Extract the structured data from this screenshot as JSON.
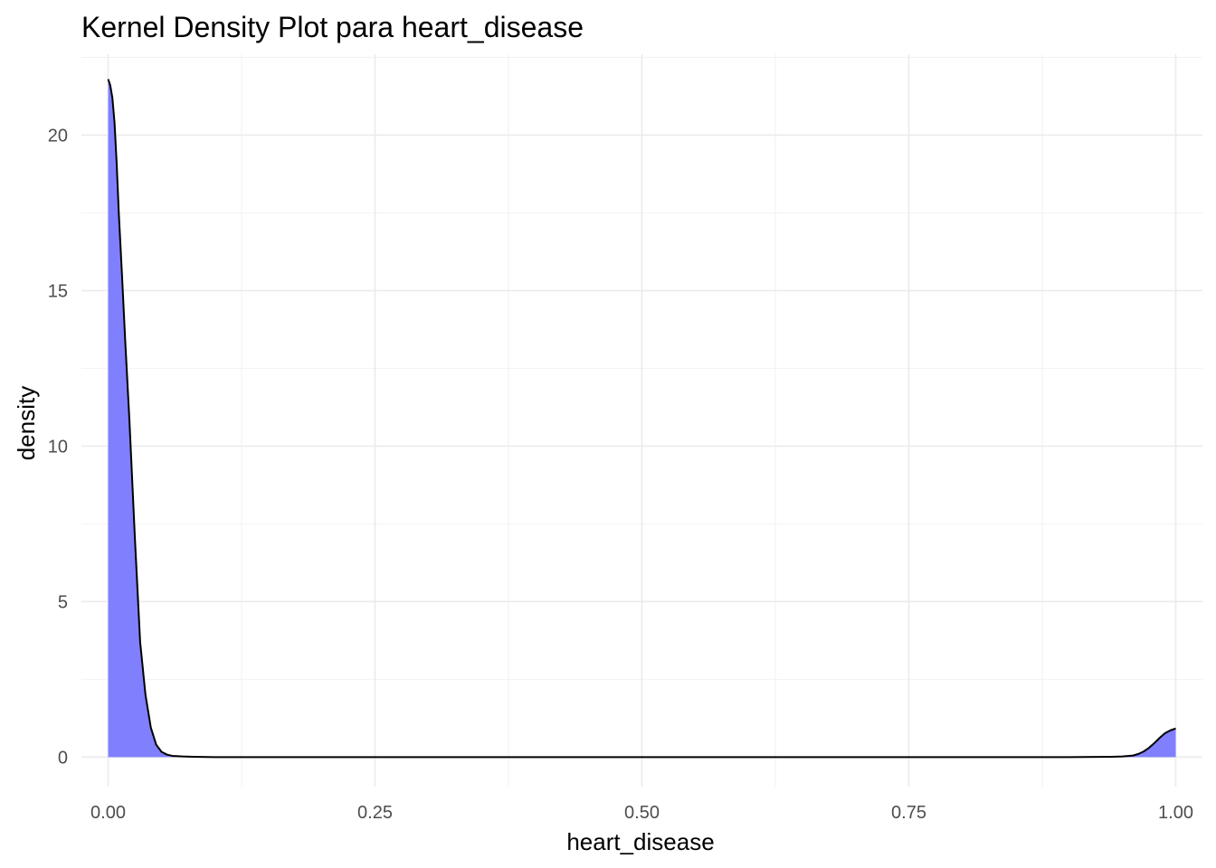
{
  "chart_data": {
    "type": "area",
    "title": "Kernel Density Plot para heart_disease",
    "xlabel": "heart_disease",
    "ylabel": "density",
    "xlim": [
      -0.025,
      1.025
    ],
    "ylim": [
      -0.95,
      22.6
    ],
    "x_ticks": [
      {
        "value": 0.0,
        "label": "0.00"
      },
      {
        "value": 0.25,
        "label": "0.25"
      },
      {
        "value": 0.5,
        "label": "0.50"
      },
      {
        "value": 0.75,
        "label": "0.75"
      },
      {
        "value": 1.0,
        "label": "1.00"
      }
    ],
    "y_ticks": [
      {
        "value": 0,
        "label": "0"
      },
      {
        "value": 5,
        "label": "5"
      },
      {
        "value": 10,
        "label": "10"
      },
      {
        "value": 15,
        "label": "15"
      },
      {
        "value": 20,
        "label": "20"
      }
    ],
    "minor_x_ticks": [
      0.125,
      0.375,
      0.625,
      0.875
    ],
    "minor_y_ticks": [
      2.5,
      7.5,
      12.5,
      17.5,
      22.5
    ],
    "grid": true,
    "legend": "none",
    "fill_color": "#8080ff",
    "line_color": "#000000",
    "series": [
      {
        "x": [
          0.0,
          0.002,
          0.004,
          0.006,
          0.008,
          0.01,
          0.013,
          0.016,
          0.02,
          0.025,
          0.03,
          0.035,
          0.04,
          0.045,
          0.05,
          0.055,
          0.06,
          0.07,
          0.08,
          0.1,
          0.2,
          0.4,
          0.6,
          0.8,
          0.9,
          0.94,
          0.95,
          0.96,
          0.965,
          0.97,
          0.975,
          0.98,
          0.985,
          0.99,
          0.995,
          1.0
        ],
        "y": [
          21.8,
          21.6,
          21.2,
          20.4,
          19.1,
          17.5,
          15.5,
          13.4,
          10.8,
          7.1,
          3.7,
          2.0,
          0.95,
          0.4,
          0.17,
          0.08,
          0.04,
          0.02,
          0.01,
          0.0,
          0.0,
          0.0,
          0.0,
          0.0,
          0.0,
          0.01,
          0.02,
          0.05,
          0.1,
          0.18,
          0.3,
          0.45,
          0.62,
          0.77,
          0.86,
          0.92
        ]
      }
    ]
  }
}
